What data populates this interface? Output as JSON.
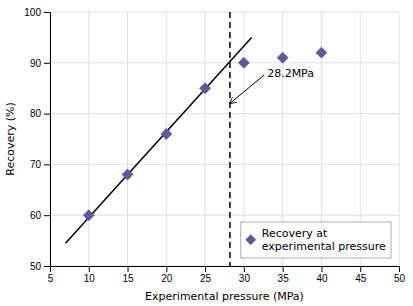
{
  "chart_data": {
    "type": "scatter",
    "xlabel": "Experimental pressure (MPa)",
    "ylabel": "Recovery (%)",
    "series": [
      {
        "type": "line",
        "color": "#000000",
        "x": [
          7.0,
          31.0
        ],
        "values": [
          54.5,
          95.0
        ]
      },
      {
        "type": "scatter",
        "name": "Recovery at\nexperimental pressure",
        "color": "#5B5B9B",
        "marker": "diamond",
        "x": [
          10,
          15,
          20,
          25,
          30,
          35,
          40
        ],
        "values": [
          60,
          68,
          76,
          85,
          90,
          91,
          92
        ]
      }
    ],
    "reference_lines": [
      {
        "x": 28.2,
        "color": "#000000",
        "line_style": "dashed"
      }
    ],
    "annotations": [
      {
        "text": "28.2MPa",
        "x": 33.0,
        "y": 88.0,
        "arrow_x": 28.2,
        "arrow_y": 82.0
      }
    ],
    "xlim": [
      5,
      50
    ],
    "ylim": [
      50,
      100
    ],
    "xticks": [
      5,
      10,
      15,
      20,
      25,
      30,
      35,
      40,
      45,
      50
    ],
    "yticks": [
      50,
      60,
      70,
      80,
      90,
      100
    ],
    "grid": true,
    "legend": "lower right"
  }
}
